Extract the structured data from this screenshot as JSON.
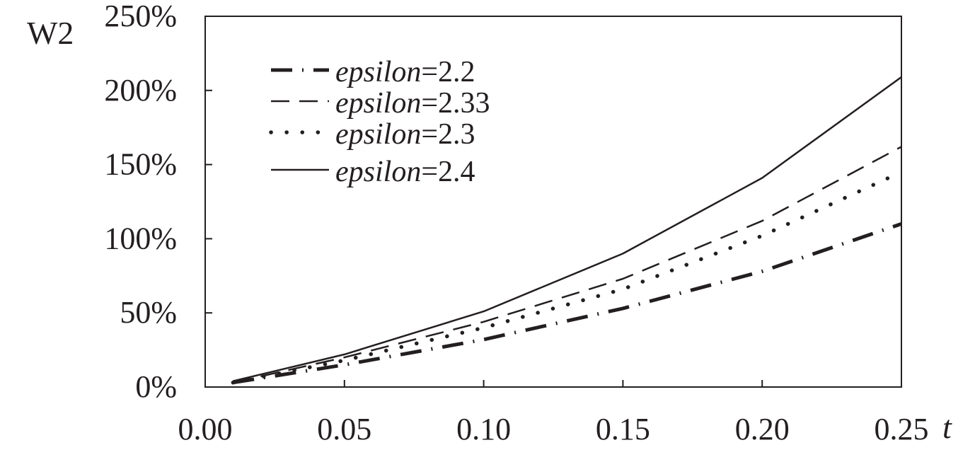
{
  "chart_data": {
    "type": "line",
    "ylabel": "W2",
    "xlabel": "t",
    "x": [
      0.01,
      0.05,
      0.1,
      0.15,
      0.2,
      0.25
    ],
    "xlim": [
      0.0,
      0.25
    ],
    "ylim": [
      0,
      250
    ],
    "x_ticks": [
      "0.00",
      "0.05",
      "0.10",
      "0.15",
      "0.20",
      "0.25"
    ],
    "y_ticks": [
      "0%",
      "50%",
      "100%",
      "150%",
      "200%",
      "250%"
    ],
    "grid": false,
    "legend_position": "top-left",
    "series": [
      {
        "name": "epsilon=2.2",
        "var": "epsilon",
        "val": "=2.2",
        "style": "dashdot",
        "values": [
          3,
          15,
          32,
          53,
          78,
          110
        ]
      },
      {
        "name": "epsilon=2.33",
        "var": "epsilon",
        "val": "=2.33",
        "style": "dashed",
        "values": [
          3,
          20,
          44,
          73,
          112,
          162
        ]
      },
      {
        "name": "epsilon=2.3",
        "var": "epsilon",
        "val": "=2.3",
        "style": "dotted",
        "values": [
          3,
          18,
          40,
          66,
          102,
          145
        ]
      },
      {
        "name": "epsilon=2.4",
        "var": "epsilon",
        "val": "=2.4",
        "style": "solid",
        "values": [
          4,
          22,
          51,
          90,
          141,
          209
        ]
      }
    ],
    "line_color": "#231f20"
  }
}
